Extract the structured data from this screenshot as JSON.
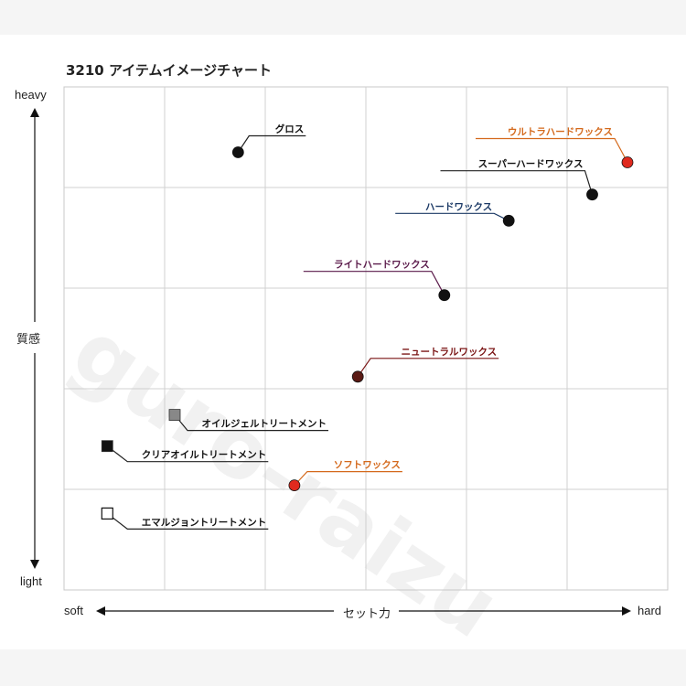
{
  "chart_data": {
    "type": "scatter",
    "title": "3210 アイテムイメージチャート",
    "xlabel": "セット力",
    "ylabel": "質感",
    "x_ends": [
      "soft",
      "hard"
    ],
    "y_ends": [
      "light",
      "heavy"
    ],
    "xlim": [
      0,
      6
    ],
    "ylim": [
      0,
      5
    ],
    "grid": true,
    "points": [
      {
        "name": "グロス",
        "x": 1.73,
        "y": 4.35,
        "marker": "circle",
        "color": "#111111",
        "label_color": "#111111"
      },
      {
        "name": "ウルトラハードワックス",
        "x": 5.6,
        "y": 4.25,
        "marker": "circle",
        "color": "#e02a1e",
        "label_color": "#d4691c"
      },
      {
        "name": "スーパーハードワックス",
        "x": 5.25,
        "y": 3.93,
        "marker": "circle",
        "color": "#111111",
        "label_color": "#111111"
      },
      {
        "name": "ハードワックス",
        "x": 4.42,
        "y": 3.67,
        "marker": "circle",
        "color": "#111111",
        "label_color": "#1c3a66"
      },
      {
        "name": "ライトハードワックス",
        "x": 3.78,
        "y": 2.93,
        "marker": "circle",
        "color": "#111111",
        "label_color": "#5a1a4a"
      },
      {
        "name": "ニュートラルワックス",
        "x": 2.92,
        "y": 2.12,
        "marker": "circle",
        "color": "#5a1a14",
        "label_color": "#7a1414"
      },
      {
        "name": "オイルジェルトリートメント",
        "x": 1.1,
        "y": 1.74,
        "marker": "square",
        "color": "#888888",
        "label_color": "#111111"
      },
      {
        "name": "クリアオイルトリートメント",
        "x": 0.43,
        "y": 1.43,
        "marker": "square",
        "color": "#111111",
        "label_color": "#111111"
      },
      {
        "name": "ソフトワックス",
        "x": 2.29,
        "y": 1.04,
        "marker": "circle",
        "color": "#e02a1e",
        "label_color": "#d4691c"
      },
      {
        "name": "エマルジョントリートメント",
        "x": 0.43,
        "y": 0.76,
        "marker": "square-open",
        "color": "#111111",
        "label_color": "#111111"
      }
    ]
  },
  "watermark": "guro-raizu"
}
